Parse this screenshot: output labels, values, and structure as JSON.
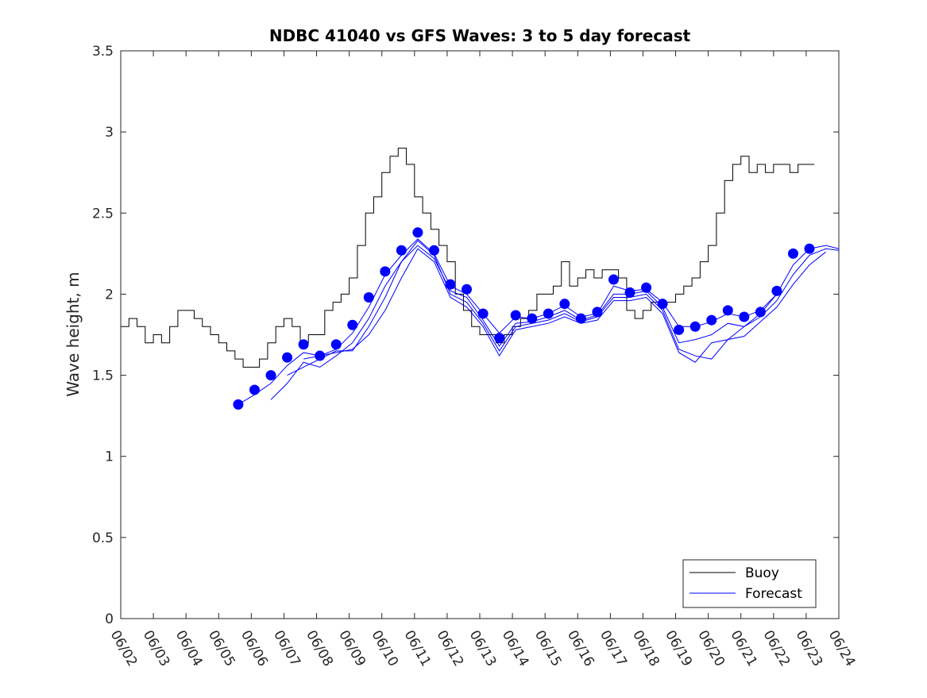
{
  "chart_data": {
    "type": "line",
    "title": "NDBC 41040 vs GFS Waves: 3 to 5 day forecast",
    "xlabel": "",
    "ylabel": "Wave height, m",
    "xlim": [
      0,
      22
    ],
    "ylim": [
      0,
      3.5
    ],
    "x_tick_labels": [
      "06/02",
      "06/03",
      "06/04",
      "06/05",
      "06/06",
      "06/07",
      "06/08",
      "06/09",
      "06/10",
      "06/11",
      "06/12",
      "06/13",
      "06/14",
      "06/15",
      "06/16",
      "06/17",
      "06/18",
      "06/19",
      "06/20",
      "06/21",
      "06/22",
      "06/23",
      "06/24"
    ],
    "y_ticks": [
      0,
      0.5,
      1,
      1.5,
      2,
      2.5,
      3,
      3.5
    ],
    "y_tick_labels": [
      "0",
      "0.5",
      "1",
      "1.5",
      "2",
      "2.5",
      "3",
      "3.5"
    ],
    "x_unit_note": "x values are days after 06/02 00:00",
    "grid": false,
    "legend": {
      "position": "bottom-right",
      "entries": [
        "Buoy",
        "Forecast"
      ]
    },
    "colors": {
      "buoy": "#000000",
      "forecast": "#0000ff"
    },
    "series": [
      {
        "name": "Buoy",
        "style": "step",
        "x": [
          0,
          0.25,
          0.5,
          0.75,
          1.0,
          1.25,
          1.5,
          1.75,
          2.0,
          2.25,
          2.5,
          2.75,
          3.0,
          3.25,
          3.5,
          3.75,
          4.0,
          4.25,
          4.5,
          4.75,
          5.0,
          5.25,
          5.5,
          5.75,
          6.0,
          6.25,
          6.5,
          6.75,
          7.0,
          7.25,
          7.5,
          7.75,
          8.0,
          8.25,
          8.5,
          8.75,
          9.0,
          9.25,
          9.5,
          9.75,
          10.0,
          10.25,
          10.5,
          10.75,
          11.0,
          11.25,
          11.5,
          11.75,
          12.0,
          12.25,
          12.5,
          12.75,
          13.0,
          13.25,
          13.5,
          13.75,
          14.0,
          14.25,
          14.5,
          14.75,
          15.0,
          15.25,
          15.5,
          15.75,
          16.0,
          16.25,
          16.5,
          16.75,
          17.0,
          17.25,
          17.5,
          17.75,
          18.0,
          18.25,
          18.5,
          18.75,
          19.0,
          19.25,
          19.5,
          19.75,
          20.0,
          20.25,
          20.5,
          20.75,
          21.0,
          21.25
        ],
        "y": [
          1.8,
          1.85,
          1.8,
          1.7,
          1.75,
          1.7,
          1.8,
          1.9,
          1.9,
          1.85,
          1.8,
          1.75,
          1.7,
          1.65,
          1.6,
          1.55,
          1.55,
          1.6,
          1.7,
          1.8,
          1.85,
          1.8,
          1.7,
          1.75,
          1.75,
          1.9,
          1.95,
          2.0,
          2.1,
          2.3,
          2.5,
          2.6,
          2.75,
          2.85,
          2.9,
          2.8,
          2.6,
          2.5,
          2.4,
          2.3,
          2.2,
          2.0,
          1.9,
          1.8,
          1.75,
          1.75,
          1.7,
          1.75,
          1.8,
          1.85,
          1.9,
          2.0,
          2.0,
          2.05,
          2.2,
          2.05,
          2.1,
          2.15,
          2.1,
          2.15,
          2.15,
          2.1,
          1.9,
          1.85,
          1.9,
          1.95,
          1.95,
          1.95,
          2.0,
          2.05,
          2.1,
          2.2,
          2.3,
          2.5,
          2.7,
          2.8,
          2.85,
          2.75,
          2.8,
          2.75,
          2.8,
          2.8,
          2.75,
          2.8,
          2.8,
          2.8
        ]
      },
      {
        "name": "Forecast",
        "style": "markers",
        "x": [
          3.6,
          4.1,
          4.6,
          5.1,
          5.6,
          6.1,
          6.6,
          7.1,
          7.6,
          8.1,
          8.6,
          9.1,
          9.6,
          10.1,
          10.6,
          11.1,
          11.6,
          12.1,
          12.6,
          13.1,
          13.6,
          14.1,
          14.6,
          15.1,
          15.6,
          16.1,
          16.6,
          17.1,
          17.6,
          18.1,
          18.6,
          19.1,
          19.6,
          20.1,
          20.6,
          21.1
        ],
        "y": [
          1.32,
          1.41,
          1.5,
          1.61,
          1.69,
          1.62,
          1.69,
          1.81,
          1.98,
          2.14,
          2.27,
          2.38,
          2.27,
          2.06,
          2.03,
          1.88,
          1.73,
          1.87,
          1.85,
          1.88,
          1.94,
          1.85,
          1.89,
          2.09,
          2.01,
          2.04,
          1.94,
          1.78,
          1.8,
          1.84,
          1.9,
          1.86,
          1.89,
          2.02,
          2.25,
          2.28
        ]
      },
      {
        "style": "line",
        "x": [
          3.6,
          4.1,
          4.6,
          5.1,
          5.6,
          6.1,
          6.6,
          7.1,
          7.6,
          8.1,
          8.6,
          9.1,
          9.6,
          10.1,
          10.6,
          11.1,
          11.6,
          12.1,
          12.6,
          13.1,
          13.6,
          14.1,
          14.6,
          15.1,
          15.6,
          16.1,
          16.6,
          17.1,
          17.6,
          18.1,
          18.6,
          19.1,
          19.6,
          20.1,
          20.6,
          21.1,
          21.6,
          22.0
        ],
        "y": [
          1.32,
          1.38,
          1.45,
          1.56,
          1.64,
          1.62,
          1.66,
          1.76,
          1.92,
          2.12,
          2.24,
          2.34,
          2.25,
          2.05,
          2.0,
          1.88,
          1.76,
          1.86,
          1.85,
          1.88,
          1.93,
          1.86,
          1.88,
          2.05,
          2.02,
          2.03,
          1.95,
          1.8,
          1.8,
          1.83,
          1.88,
          1.86,
          1.9,
          2.0,
          2.18,
          2.28,
          2.3,
          2.28
        ]
      },
      {
        "style": "line",
        "x": [
          4.6,
          5.1,
          5.6,
          6.1,
          6.6,
          7.1,
          7.6,
          8.1,
          8.6,
          9.1,
          9.6,
          10.1,
          10.6,
          11.1,
          11.6,
          12.1,
          12.6,
          13.1,
          13.6,
          14.1,
          14.6,
          15.1,
          15.6,
          16.1,
          16.6,
          17.1,
          17.6,
          18.1,
          18.6,
          19.1,
          19.6,
          20.1,
          20.6,
          21.1,
          21.6,
          22.0
        ],
        "y": [
          1.35,
          1.45,
          1.58,
          1.55,
          1.62,
          1.7,
          1.85,
          2.05,
          2.2,
          2.3,
          2.22,
          2.02,
          1.98,
          1.84,
          1.68,
          1.82,
          1.83,
          1.86,
          1.9,
          1.84,
          1.87,
          2.0,
          2.0,
          2.02,
          1.92,
          1.7,
          1.72,
          1.75,
          1.82,
          1.8,
          1.86,
          1.96,
          2.12,
          2.24,
          2.28,
          2.27
        ]
      },
      {
        "style": "line",
        "x": [
          5.1,
          5.6,
          6.1,
          6.6,
          7.1,
          7.6,
          8.1,
          8.6,
          9.1,
          9.6,
          10.1,
          10.6,
          11.1,
          11.6,
          12.1,
          12.6,
          13.1,
          13.6,
          14.1,
          14.6,
          15.1,
          15.6,
          16.1,
          16.6,
          17.1,
          17.6,
          18.1,
          18.6,
          19.1,
          19.6,
          20.1,
          20.6,
          21.1,
          21.6
        ],
        "y": [
          1.5,
          1.55,
          1.6,
          1.65,
          1.65,
          1.8,
          1.98,
          2.2,
          2.33,
          2.24,
          2.0,
          1.95,
          1.82,
          1.65,
          1.8,
          1.82,
          1.84,
          1.88,
          1.83,
          1.86,
          1.98,
          1.98,
          2.0,
          1.9,
          1.66,
          1.62,
          1.6,
          1.72,
          1.74,
          1.83,
          1.92,
          2.06,
          2.18,
          2.26
        ]
      },
      {
        "style": "line",
        "x": [
          5.6,
          6.1,
          6.6,
          7.1,
          7.6,
          8.1,
          8.6,
          9.1,
          9.6,
          10.1,
          10.6,
          11.1,
          11.6,
          12.1,
          12.6,
          13.1,
          13.6,
          14.1,
          14.6,
          15.1,
          15.6,
          16.1,
          16.6,
          17.1,
          17.6,
          18.1,
          18.6,
          19.1,
          19.6,
          20.1
        ],
        "y": [
          1.6,
          1.62,
          1.64,
          1.66,
          1.75,
          1.9,
          2.1,
          2.28,
          2.2,
          1.98,
          1.92,
          1.8,
          1.62,
          1.78,
          1.8,
          1.82,
          1.86,
          1.82,
          1.84,
          1.96,
          1.96,
          1.98,
          1.88,
          1.64,
          1.58,
          1.7,
          1.72,
          1.8,
          1.88,
          2.0
        ]
      }
    ]
  }
}
